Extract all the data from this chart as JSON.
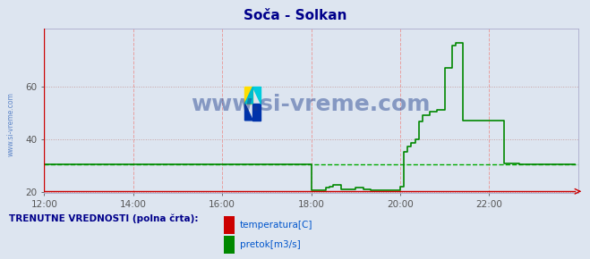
{
  "title": "Soča - Solkan",
  "bg_color": "#dde5f0",
  "plot_bg_color": "#dde5f0",
  "title_color": "#00008b",
  "title_fontsize": 11,
  "ylim": [
    19.5,
    82
  ],
  "yticks": [
    20,
    40,
    60
  ],
  "xtick_labels": [
    "12:00",
    "14:00",
    "16:00",
    "18:00",
    "20:00",
    "22:00"
  ],
  "xtick_positions": [
    0,
    24,
    48,
    72,
    96,
    120
  ],
  "total_points": 144,
  "temp_color": "#cc0000",
  "flow_color": "#008800",
  "flow_avg_color": "#00aa00",
  "grid_v_color": "#e8a0a0",
  "grid_h_color": "#c8a0a0",
  "watermark_text": "www.si-vreme.com",
  "watermark_color": "#1a3a8a",
  "watermark_alpha": 0.45,
  "watermark_fontsize": 18,
  "legend_label1": "temperatura[C]",
  "legend_label2": "pretok[m3/s]",
  "legend_color": "#0055cc",
  "footer_text": "TRENUTNE VREDNOSTI (polna črta):",
  "footer_color": "#00008b",
  "sidewater_text": "www.si-vreme.com",
  "sidewater_color": "#3366bb",
  "avg_flow": 30.5,
  "flow_data": [
    30.5,
    30.5,
    30.5,
    30.5,
    30.5,
    30.5,
    30.5,
    30.5,
    30.5,
    30.5,
    30.5,
    30.5,
    30.5,
    30.5,
    30.5,
    30.5,
    30.5,
    30.5,
    30.5,
    30.5,
    30.5,
    30.5,
    30.5,
    30.5,
    30.5,
    30.5,
    30.5,
    30.5,
    30.5,
    30.5,
    30.5,
    30.5,
    30.5,
    30.5,
    30.5,
    30.5,
    30.5,
    30.5,
    30.5,
    30.5,
    30.5,
    30.5,
    30.5,
    30.5,
    30.5,
    30.5,
    30.5,
    30.5,
    30.5,
    30.5,
    30.5,
    30.5,
    30.5,
    30.5,
    30.5,
    30.5,
    30.5,
    30.5,
    30.5,
    30.5,
    30.5,
    30.5,
    30.5,
    30.5,
    30.5,
    30.5,
    30.5,
    30.5,
    30.5,
    30.5,
    30.5,
    30.5,
    20.5,
    20.5,
    20.5,
    20.5,
    21.5,
    22.0,
    22.5,
    22.5,
    21.0,
    21.0,
    20.8,
    20.8,
    21.5,
    21.5,
    20.8,
    20.8,
    20.5,
    20.5,
    20.5,
    20.5,
    20.5,
    20.5,
    20.5,
    20.5,
    22.0,
    35.0,
    37.0,
    38.5,
    40.0,
    46.5,
    49.0,
    49.0,
    50.5,
    50.5,
    51.0,
    51.0,
    67.0,
    67.0,
    75.5,
    76.5,
    76.5,
    47.0,
    47.0,
    47.0,
    47.0,
    47.0,
    47.0,
    47.0,
    47.0,
    47.0,
    47.0,
    47.0,
    30.8,
    30.8,
    30.8,
    30.8,
    30.5,
    30.5,
    30.5,
    30.5,
    30.5,
    30.5,
    30.5,
    30.5,
    30.5,
    30.5,
    30.5,
    30.5,
    30.5,
    30.5,
    30.5,
    30.5
  ],
  "temp_data_val": 20.1
}
